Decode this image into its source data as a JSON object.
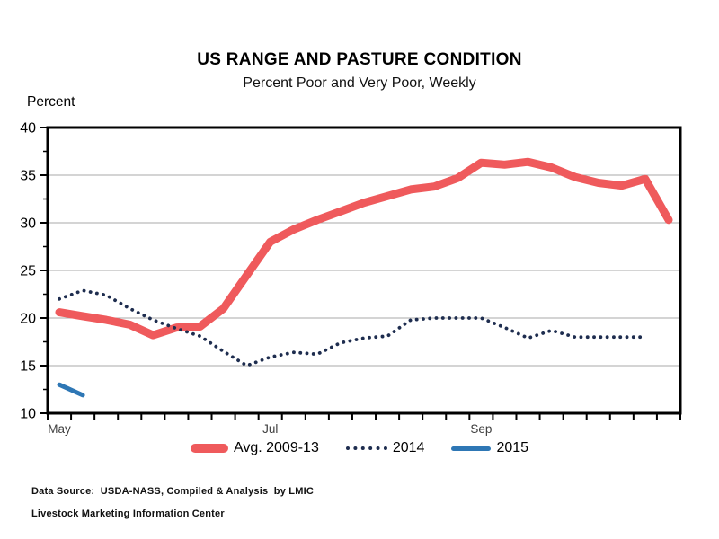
{
  "header": {
    "title": "US RANGE AND PASTURE CONDITION",
    "subtitle": "Percent Poor and Very Poor, Weekly",
    "y_axis_unit_label": "Percent"
  },
  "chart_data": {
    "type": "line",
    "title": "US RANGE AND PASTURE CONDITION",
    "subtitle": "Percent Poor and Very Poor, Weekly",
    "ylabel": "Percent",
    "xlabel": "",
    "ylim": [
      10,
      40
    ],
    "yticks": [
      10,
      15,
      20,
      25,
      30,
      35,
      40
    ],
    "y_minor_tick_step": 2.5,
    "x_total_weeks": 27,
    "x_month_labels": [
      {
        "label": "May",
        "slot": 0
      },
      {
        "label": "Jul",
        "slot": 9
      },
      {
        "label": "Sep",
        "slot": 18
      }
    ],
    "grid": "horizontal-only",
    "legend_position": "bottom",
    "colors": {
      "grid": "#a9a9a9",
      "frame": "#000000",
      "month_label": "#404040"
    },
    "series": [
      {
        "name": "Avg. 2009-13",
        "style": "solid-thick",
        "color": "#ef5a5c",
        "values": [
          20.6,
          20.2,
          19.8,
          19.3,
          18.2,
          19.0,
          19.1,
          21.0,
          24.5,
          28.0,
          29.3,
          30.3,
          31.2,
          32.1,
          32.8,
          33.5,
          33.8,
          34.7,
          36.3,
          36.1,
          36.4,
          35.8,
          34.8,
          34.2,
          33.9,
          34.6,
          30.3
        ]
      },
      {
        "name": "2014",
        "style": "dotted",
        "color": "#1e2d4f",
        "values": [
          22.0,
          22.9,
          22.4,
          21.0,
          19.8,
          18.9,
          18.1,
          16.5,
          15.0,
          15.9,
          16.4,
          16.2,
          17.4,
          17.9,
          18.1,
          19.8,
          20.0,
          20.0,
          20.0,
          19.0,
          17.9,
          18.7,
          18.0,
          18.0,
          18.0,
          18.0
        ]
      },
      {
        "name": "2015",
        "style": "solid",
        "color": "#2e77b5",
        "values": [
          13.0,
          11.9
        ]
      }
    ]
  },
  "footer": {
    "source_line1": "Data Source:  USDA-NASS, Compiled & Analysis  by LMIC",
    "source_line2": "Livestock Marketing Information Center"
  }
}
